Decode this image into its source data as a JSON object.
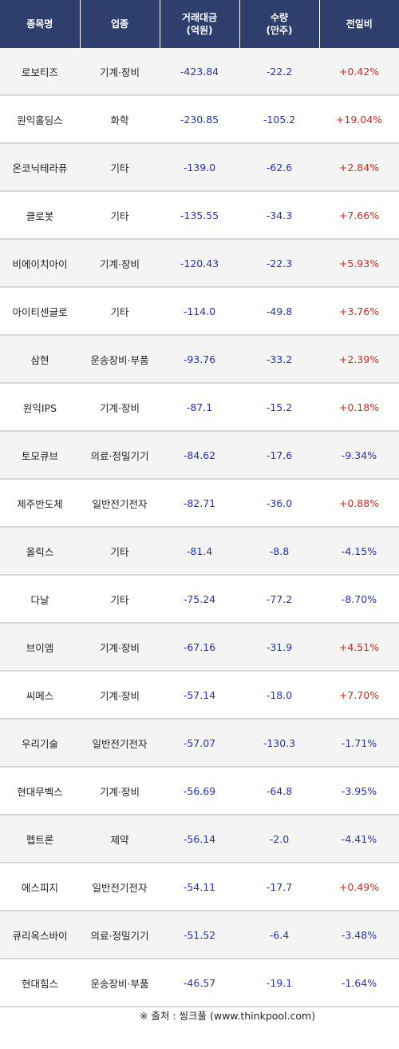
{
  "chart_data": {
    "type": "table",
    "columns": [
      {
        "key": "name",
        "label": "종목명"
      },
      {
        "key": "sector",
        "label": "업종"
      },
      {
        "key": "amount",
        "label": "거래대금",
        "sub": "(억원)"
      },
      {
        "key": "volume",
        "label": "수량",
        "sub": "(만주)"
      },
      {
        "key": "change",
        "label": "전일비"
      }
    ],
    "rows": [
      {
        "name": "로보티즈",
        "sector": "기계·장비",
        "amount": "-423.84",
        "volume": "-22.2",
        "change": "+0.42%"
      },
      {
        "name": "원익홀딩스",
        "sector": "화학",
        "amount": "-230.85",
        "volume": "-105.2",
        "change": "+19.04%"
      },
      {
        "name": "온코닉테라퓨",
        "sector": "기타",
        "amount": "-139.0",
        "volume": "-62.6",
        "change": "+2.84%"
      },
      {
        "name": "클로봇",
        "sector": "기타",
        "amount": "-135.55",
        "volume": "-34.3",
        "change": "+7.66%"
      },
      {
        "name": "비에이치아이",
        "sector": "기계·장비",
        "amount": "-120.43",
        "volume": "-22.3",
        "change": "+5.93%"
      },
      {
        "name": "아이티센글로",
        "sector": "기타",
        "amount": "-114.0",
        "volume": "-49.8",
        "change": "+3.76%"
      },
      {
        "name": "삼현",
        "sector": "운송장비·부품",
        "amount": "-93.76",
        "volume": "-33.2",
        "change": "+2.39%"
      },
      {
        "name": "원익IPS",
        "sector": "기계·장비",
        "amount": "-87.1",
        "volume": "-15.2",
        "change": "+0.18%"
      },
      {
        "name": "토모큐브",
        "sector": "의료·정밀기기",
        "amount": "-84.62",
        "volume": "-17.6",
        "change": "-9.34%"
      },
      {
        "name": "제주반도체",
        "sector": "일반전기전자",
        "amount": "-82.71",
        "volume": "-36.0",
        "change": "+0.88%"
      },
      {
        "name": "올릭스",
        "sector": "기타",
        "amount": "-81.4",
        "volume": "-8.8",
        "change": "-4.15%"
      },
      {
        "name": "다날",
        "sector": "기타",
        "amount": "-75.24",
        "volume": "-77.2",
        "change": "-8.70%"
      },
      {
        "name": "브이엠",
        "sector": "기계·장비",
        "amount": "-67.16",
        "volume": "-31.9",
        "change": "+4.51%"
      },
      {
        "name": "씨메스",
        "sector": "기계·장비",
        "amount": "-57.14",
        "volume": "-18.0",
        "change": "+7.70%"
      },
      {
        "name": "우리기술",
        "sector": "일반전기전자",
        "amount": "-57.07",
        "volume": "-130.3",
        "change": "-1.71%"
      },
      {
        "name": "현대무벡스",
        "sector": "기계·장비",
        "amount": "-56.69",
        "volume": "-64.8",
        "change": "-3.95%"
      },
      {
        "name": "펩트론",
        "sector": "제약",
        "amount": "-56.14",
        "volume": "-2.0",
        "change": "-4.41%"
      },
      {
        "name": "에스피지",
        "sector": "일반전기전자",
        "amount": "-54.11",
        "volume": "-17.7",
        "change": "+0.49%"
      },
      {
        "name": "큐리옥스바이",
        "sector": "의료·정밀기기",
        "amount": "-51.52",
        "volume": "-6.4",
        "change": "-3.48%"
      },
      {
        "name": "현대힘스",
        "sector": "운송장비·부품",
        "amount": "-46.57",
        "volume": "-19.1",
        "change": "-1.64%"
      }
    ],
    "colors": {
      "header_bg": "#2f3f6d",
      "up": "#e0241b",
      "down": "#2233bb",
      "stripe": "#f4f4f4"
    }
  },
  "source": "※ 출처 : 씽크풀 (www.thinkpool.com)"
}
